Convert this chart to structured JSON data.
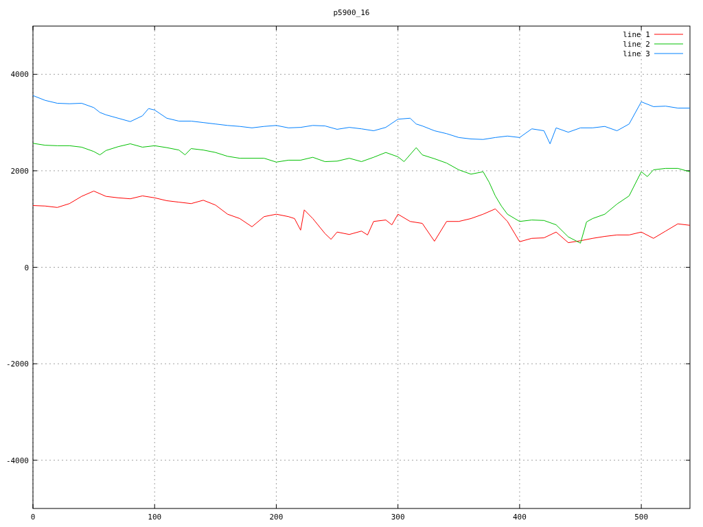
{
  "chart_data": {
    "type": "line",
    "title": "p5900_16",
    "xlim": [
      0,
      540
    ],
    "ylim": [
      -5000,
      5000
    ],
    "xticks": [
      0,
      100,
      200,
      300,
      400,
      500
    ],
    "yticks": [
      -4000,
      -2000,
      0,
      2000,
      4000
    ],
    "grid": true,
    "legend": "top right",
    "line_style": "solid",
    "marker": "none",
    "series": [
      {
        "name": "line 1",
        "color": "#ff0000",
        "x": [
          0,
          10,
          20,
          30,
          40,
          50,
          60,
          70,
          80,
          90,
          100,
          110,
          120,
          130,
          140,
          150,
          160,
          170,
          180,
          190,
          200,
          210,
          215,
          220,
          223,
          230,
          240,
          245,
          250,
          260,
          270,
          275,
          280,
          290,
          295,
          300,
          310,
          320,
          330,
          340,
          350,
          360,
          370,
          380,
          390,
          400,
          410,
          420,
          430,
          440,
          450,
          460,
          470,
          480,
          490,
          500,
          510,
          520,
          530,
          540
        ],
        "values": [
          1280,
          1270,
          1240,
          1320,
          1470,
          1580,
          1470,
          1440,
          1420,
          1480,
          1440,
          1380,
          1350,
          1320,
          1390,
          1290,
          1100,
          1010,
          840,
          1050,
          1100,
          1050,
          1010,
          770,
          1190,
          1010,
          700,
          580,
          730,
          680,
          750,
          670,
          950,
          980,
          880,
          1100,
          950,
          910,
          540,
          950,
          950,
          1010,
          1100,
          1210,
          950,
          530,
          600,
          610,
          730,
          510,
          550,
          600,
          640,
          670,
          670,
          730,
          600,
          750,
          900,
          870
        ]
      },
      {
        "name": "line 2",
        "color": "#00c000",
        "x": [
          0,
          10,
          20,
          30,
          40,
          50,
          55,
          60,
          70,
          80,
          90,
          100,
          110,
          120,
          125,
          130,
          140,
          150,
          160,
          170,
          180,
          190,
          200,
          210,
          220,
          230,
          240,
          250,
          260,
          270,
          280,
          290,
          300,
          305,
          315,
          320,
          330,
          340,
          350,
          360,
          370,
          375,
          380,
          385,
          390,
          400,
          410,
          420,
          430,
          440,
          450,
          455,
          460,
          470,
          480,
          490,
          500,
          505,
          510,
          520,
          530,
          540
        ],
        "values": [
          2570,
          2530,
          2520,
          2520,
          2490,
          2400,
          2330,
          2420,
          2500,
          2560,
          2490,
          2520,
          2480,
          2430,
          2330,
          2460,
          2430,
          2380,
          2300,
          2260,
          2260,
          2260,
          2180,
          2220,
          2220,
          2280,
          2190,
          2200,
          2260,
          2190,
          2280,
          2380,
          2290,
          2190,
          2480,
          2330,
          2250,
          2160,
          2020,
          1930,
          1980,
          1760,
          1480,
          1270,
          1100,
          950,
          980,
          970,
          880,
          630,
          500,
          940,
          1010,
          1100,
          1310,
          1480,
          1980,
          1880,
          2020,
          2050,
          2050,
          1980
        ]
      },
      {
        "name": "line 3",
        "color": "#0080ff",
        "x": [
          0,
          10,
          20,
          30,
          40,
          50,
          55,
          60,
          70,
          80,
          90,
          95,
          100,
          110,
          120,
          130,
          140,
          150,
          160,
          170,
          180,
          190,
          200,
          210,
          220,
          230,
          240,
          250,
          260,
          270,
          280,
          290,
          300,
          310,
          315,
          320,
          330,
          340,
          350,
          360,
          370,
          380,
          390,
          400,
          410,
          420,
          425,
          430,
          440,
          450,
          460,
          470,
          480,
          490,
          500,
          510,
          520,
          530,
          540
        ],
        "values": [
          3560,
          3460,
          3400,
          3390,
          3400,
          3310,
          3210,
          3160,
          3090,
          3020,
          3140,
          3290,
          3260,
          3090,
          3030,
          3030,
          3000,
          2970,
          2940,
          2920,
          2890,
          2920,
          2940,
          2890,
          2900,
          2940,
          2930,
          2860,
          2900,
          2870,
          2830,
          2900,
          3070,
          3090,
          2970,
          2930,
          2830,
          2770,
          2690,
          2660,
          2650,
          2690,
          2720,
          2690,
          2870,
          2830,
          2560,
          2890,
          2800,
          2890,
          2890,
          2920,
          2830,
          2970,
          3430,
          3330,
          3340,
          3300,
          3300
        ]
      }
    ]
  }
}
